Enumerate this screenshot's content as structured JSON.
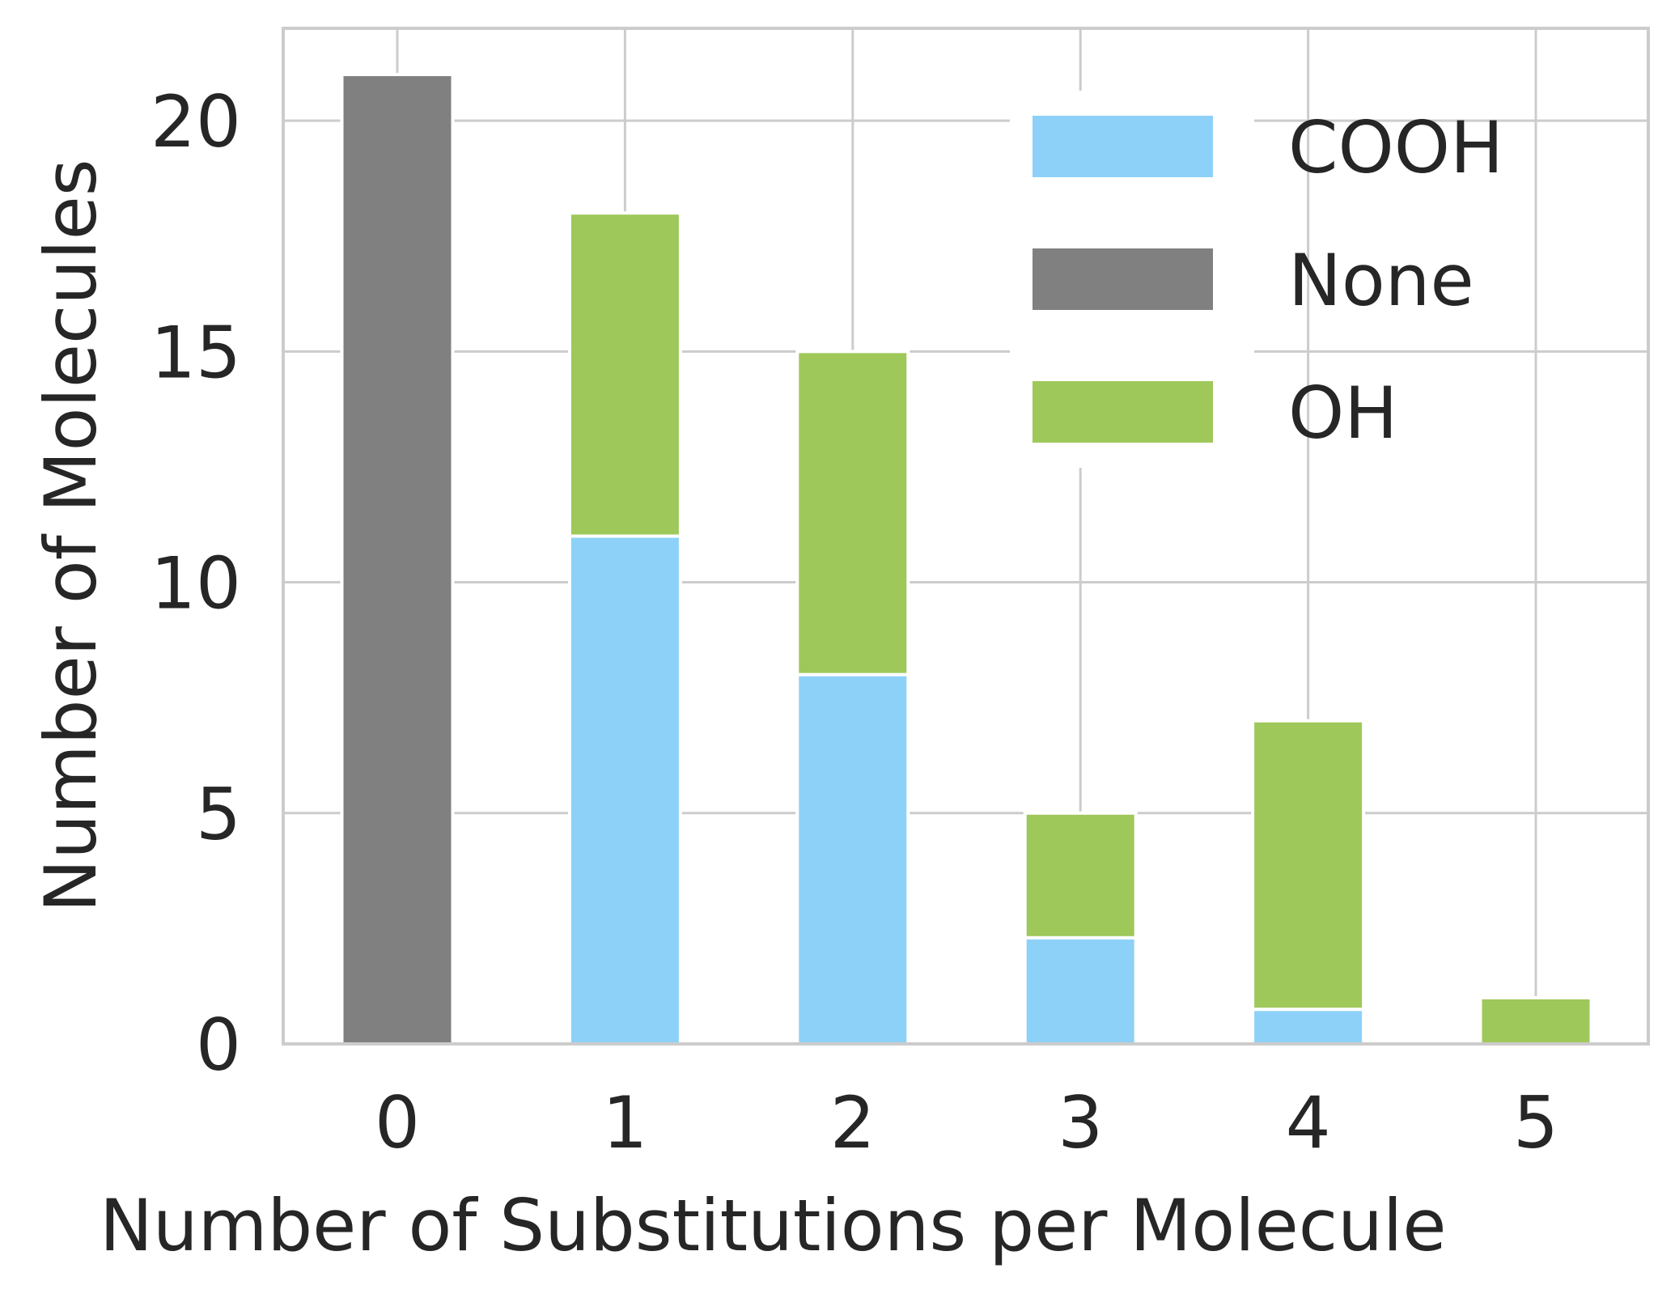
{
  "chart_data": {
    "type": "bar",
    "stacked": true,
    "title": "",
    "xlabel": "Number of Substitutions per Molecule",
    "ylabel": "Number of Molecules",
    "categories": [
      "0",
      "1",
      "2",
      "3",
      "4",
      "5"
    ],
    "ylim": [
      0,
      22
    ],
    "yticks": [
      0,
      5,
      10,
      15,
      20
    ],
    "grid": true,
    "legend_position": "top-right",
    "series": [
      {
        "name": "COOH",
        "color": "#8dd1f8",
        "values": [
          0,
          11,
          8,
          2.3,
          0.75,
          0
        ]
      },
      {
        "name": "None",
        "color": "#808080",
        "values": [
          21,
          0,
          0,
          0,
          0,
          0
        ]
      },
      {
        "name": "OH",
        "color": "#9fc85a",
        "values": [
          0,
          7,
          7,
          2.7,
          6.25,
          1
        ]
      }
    ]
  }
}
